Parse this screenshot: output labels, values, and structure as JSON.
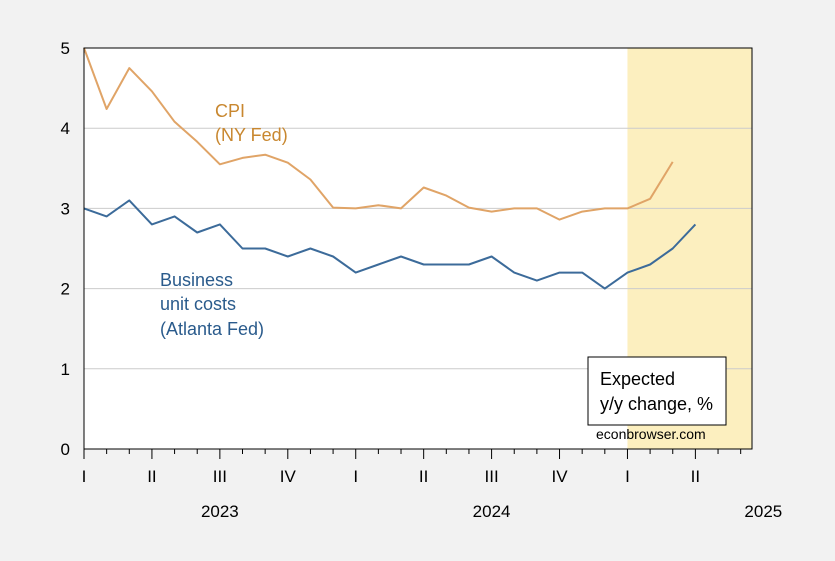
{
  "chart_data": {
    "type": "line",
    "x_start": "2023-01",
    "x_end": "2025-06",
    "ylim": [
      0,
      5
    ],
    "yticks": [
      0,
      1,
      2,
      3,
      4,
      5
    ],
    "grid": true,
    "quarter_ticks": [
      "I",
      "II",
      "III",
      "IV",
      "I",
      "II",
      "III",
      "IV",
      "I",
      "II"
    ],
    "years": [
      "2023",
      "2024",
      "2025"
    ],
    "shaded_from": "2025-01",
    "shade_color": "#fcefbf",
    "series": [
      {
        "name": "CPI (NY Fed)",
        "label_lines": [
          "CPI",
          "(NY Fed)"
        ],
        "color": "#e0a467",
        "label_color": "#c8872f",
        "x": [
          "2023-01",
          "2023-02",
          "2023-03",
          "2023-04",
          "2023-05",
          "2023-06",
          "2023-07",
          "2023-08",
          "2023-09",
          "2023-10",
          "2023-11",
          "2023-12",
          "2024-01",
          "2024-02",
          "2024-03",
          "2024-04",
          "2024-05",
          "2024-06",
          "2024-07",
          "2024-08",
          "2024-09",
          "2024-10",
          "2024-11",
          "2024-12",
          "2025-01",
          "2025-02",
          "2025-03"
        ],
        "values": [
          5.0,
          4.24,
          4.75,
          4.46,
          4.08,
          3.83,
          3.55,
          3.63,
          3.67,
          3.57,
          3.36,
          3.01,
          3.0,
          3.04,
          3.0,
          3.26,
          3.16,
          3.01,
          2.96,
          3.0,
          3.0,
          2.86,
          2.96,
          3.0,
          3.0,
          3.12,
          3.58
        ]
      },
      {
        "name": "Business unit costs (Atlanta Fed)",
        "label_lines": [
          "Business",
          "unit costs",
          "(Atlanta Fed)"
        ],
        "color": "#3c6b9a",
        "label_color": "#2a5b8c",
        "x": [
          "2023-01",
          "2023-02",
          "2023-03",
          "2023-04",
          "2023-05",
          "2023-06",
          "2023-07",
          "2023-08",
          "2023-09",
          "2023-10",
          "2023-11",
          "2023-12",
          "2024-01",
          "2024-02",
          "2024-03",
          "2024-04",
          "2024-05",
          "2024-06",
          "2024-07",
          "2024-08",
          "2024-09",
          "2024-10",
          "2024-11",
          "2024-12",
          "2025-01",
          "2025-02",
          "2025-03",
          "2025-04"
        ],
        "values": [
          3.0,
          2.9,
          3.1,
          2.8,
          2.9,
          2.7,
          2.8,
          2.5,
          2.5,
          2.4,
          2.5,
          2.4,
          2.2,
          2.3,
          2.4,
          2.3,
          2.3,
          2.3,
          2.4,
          2.2,
          2.1,
          2.2,
          2.2,
          2.0,
          2.2,
          2.3,
          2.5,
          2.8
        ]
      }
    ],
    "legend_box": [
      "Expected",
      "y/y change, %"
    ],
    "credit": "econbrowser.com"
  }
}
